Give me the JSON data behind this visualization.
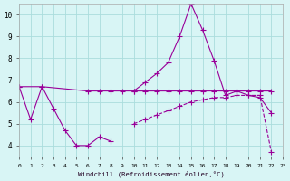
{
  "xlabel": "Windchill (Refroidissement éolien,°C)",
  "bg_color": "#d8f5f5",
  "grid_color": "#aadddd",
  "line_color": "#990099",
  "xlim": [
    0,
    23
  ],
  "ylim": [
    3.5,
    10.5
  ],
  "yticks": [
    4,
    5,
    6,
    7,
    8,
    9,
    10
  ],
  "xticks": [
    0,
    1,
    2,
    3,
    4,
    5,
    6,
    7,
    8,
    9,
    10,
    11,
    12,
    13,
    14,
    15,
    16,
    17,
    18,
    19,
    20,
    21,
    22,
    23
  ],
  "series1_x": [
    0,
    1,
    2,
    3,
    4,
    5,
    6,
    7,
    8,
    9,
    10,
    11,
    12,
    13,
    14,
    15,
    16,
    17,
    18,
    19,
    20,
    21,
    22
  ],
  "series1_y": [
    6.7,
    5.2,
    6.7,
    5.7,
    4.7,
    4.0,
    4.0,
    4.4,
    4.2,
    null,
    6.5,
    6.9,
    7.3,
    7.8,
    9.0,
    10.5,
    9.3,
    7.9,
    6.3,
    6.5,
    6.3,
    6.2,
    5.5
  ],
  "series2_x": [
    0,
    2,
    6,
    7,
    8,
    9,
    10,
    11,
    12,
    13,
    14,
    15,
    16,
    17,
    18,
    19,
    20,
    21,
    22
  ],
  "series2_y": [
    6.7,
    6.7,
    6.5,
    6.5,
    6.5,
    6.5,
    6.5,
    6.5,
    6.5,
    6.5,
    6.5,
    6.5,
    6.5,
    6.5,
    6.5,
    6.5,
    6.5,
    6.5,
    6.5
  ],
  "series3_x": [
    10,
    11,
    12,
    13,
    14,
    15,
    16,
    17,
    18,
    19,
    20,
    21,
    22
  ],
  "series3_y": [
    5.0,
    5.2,
    5.4,
    5.6,
    5.8,
    6.0,
    6.1,
    6.2,
    6.2,
    6.3,
    6.3,
    6.3,
    3.7
  ]
}
